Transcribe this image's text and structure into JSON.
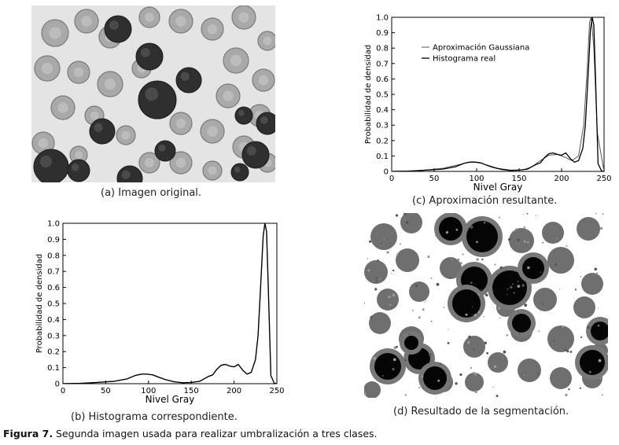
{
  "panels": {
    "a": {
      "caption": "(a) Imagen original."
    },
    "b": {
      "caption": "(b) Histograma correspondiente."
    },
    "c": {
      "caption": "(c) Aproximación resultante."
    },
    "d": {
      "caption": "(d) Resultado de la segmentación."
    }
  },
  "figure_caption": {
    "label": "Figura 7.",
    "text": " Segunda imagen usada para realizar umbralización a tres clases."
  },
  "chart_data": [
    {
      "id": "b",
      "type": "line",
      "xlabel": "Nivel Gray",
      "ylabel": "Probabilidad de densidad",
      "xlim": [
        0,
        250
      ],
      "ylim": [
        0,
        1.0
      ],
      "xticks": [
        "0",
        "50",
        "100",
        "150",
        "200",
        "250"
      ],
      "yticks": [
        "0",
        "0.1",
        "0.2",
        "0.3",
        "0.4",
        "0.5",
        "0.6",
        "0.7",
        "0.8",
        "0.9",
        "1.0"
      ],
      "grid": false,
      "series": [
        {
          "x": [
            0,
            20,
            40,
            60,
            75,
            85,
            92,
            98,
            105,
            112,
            120,
            130,
            140,
            150,
            160,
            165,
            170,
            175,
            180,
            185,
            190,
            195,
            200,
            205,
            210,
            215,
            220,
            225,
            228,
            231,
            234,
            236,
            238,
            240,
            243,
            247,
            250
          ],
          "y": [
            0,
            0.002,
            0.008,
            0.015,
            0.03,
            0.052,
            0.06,
            0.06,
            0.055,
            0.04,
            0.025,
            0.012,
            0.006,
            0.008,
            0.015,
            0.03,
            0.045,
            0.055,
            0.09,
            0.115,
            0.12,
            0.11,
            0.105,
            0.12,
            0.085,
            0.06,
            0.07,
            0.15,
            0.3,
            0.6,
            0.92,
            1.0,
            0.95,
            0.6,
            0.05,
            0.003,
            0.0
          ]
        }
      ]
    },
    {
      "id": "c",
      "type": "line",
      "xlabel": "Nivel Gray",
      "ylabel": "Probabilidad de densidad",
      "xlim": [
        0,
        250
      ],
      "ylim": [
        0,
        1.0
      ],
      "xticks": [
        "0",
        "50",
        "100",
        "150",
        "200",
        "250"
      ],
      "yticks": [
        "0",
        "0.1",
        "0.2",
        "0.3",
        "0.4",
        "0.5",
        "0.6",
        "0.7",
        "0.8",
        "0.9",
        "1.0"
      ],
      "legend": "upper-left",
      "grid": false,
      "series": [
        {
          "name": "Aproximación Gaussiana",
          "x": [
            0,
            30,
            60,
            80,
            90,
            96,
            102,
            110,
            125,
            140,
            155,
            165,
            175,
            185,
            195,
            205,
            212,
            220,
            226,
            230,
            233,
            235,
            238,
            242,
            250
          ],
          "y": [
            0,
            0.004,
            0.02,
            0.045,
            0.06,
            0.062,
            0.058,
            0.045,
            0.02,
            0.008,
            0.01,
            0.03,
            0.07,
            0.105,
            0.11,
            0.09,
            0.07,
            0.1,
            0.3,
            0.65,
            0.97,
            1.0,
            0.8,
            0.25,
            0.0
          ]
        },
        {
          "name": "Histograma real",
          "x": [
            0,
            20,
            40,
            60,
            75,
            85,
            92,
            98,
            105,
            112,
            120,
            130,
            140,
            150,
            160,
            165,
            170,
            175,
            180,
            185,
            190,
            195,
            200,
            205,
            210,
            215,
            220,
            225,
            228,
            231,
            234,
            236,
            238,
            240,
            243,
            247,
            250
          ],
          "y": [
            0,
            0.002,
            0.008,
            0.015,
            0.03,
            0.052,
            0.06,
            0.06,
            0.055,
            0.04,
            0.025,
            0.012,
            0.006,
            0.008,
            0.015,
            0.03,
            0.045,
            0.055,
            0.09,
            0.115,
            0.12,
            0.11,
            0.105,
            0.12,
            0.085,
            0.06,
            0.07,
            0.15,
            0.3,
            0.6,
            0.92,
            1.0,
            0.95,
            0.6,
            0.05,
            0.003,
            0.0
          ]
        }
      ]
    }
  ]
}
